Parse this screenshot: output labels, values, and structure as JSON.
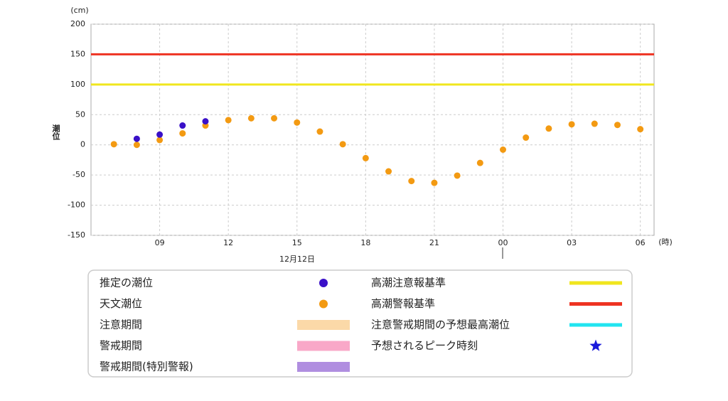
{
  "chart_data": {
    "type": "scatter",
    "y_unit": "(cm)",
    "x_unit": "(時)",
    "y_label": "潮位",
    "date_label": "12月12日",
    "xlim": [
      6,
      30.6
    ],
    "ylim": [
      -150,
      200
    ],
    "xticks": [
      {
        "value": 9,
        "label": "09"
      },
      12,
      15,
      18,
      21,
      {
        "value": 24,
        "label": "00"
      },
      {
        "value": 27,
        "label": "03"
      },
      {
        "value": 30,
        "label": "06"
      }
    ],
    "yticks": [
      200,
      150,
      100,
      50,
      0,
      -50,
      -100,
      -150
    ],
    "grid": true,
    "series": [
      {
        "name": "推定の潮位",
        "color": "#3a10c8",
        "x": [
          8,
          9,
          10,
          11
        ],
        "values": [
          10,
          17,
          32,
          39
        ]
      },
      {
        "name": "天文潮位",
        "color": "#f39a12",
        "x": [
          7,
          8,
          9,
          10,
          11,
          12,
          13,
          14,
          15,
          16,
          17,
          18,
          19,
          20,
          21,
          22,
          23,
          24,
          25,
          26,
          27,
          28,
          29,
          30
        ],
        "values": [
          1,
          0,
          8,
          19,
          32,
          41,
          44,
          44,
          37,
          22,
          1,
          -22,
          -44,
          -60,
          -63,
          -51,
          -30,
          -8,
          12,
          27,
          34,
          35,
          33,
          26
        ]
      }
    ],
    "reference_lines": [
      {
        "name": "高潮注意報基準",
        "value": 100,
        "color": "#f0e61e"
      },
      {
        "name": "高潮警報基準",
        "value": 150,
        "color": "#ee3322"
      }
    ],
    "legend_extra": [
      {
        "name": "注意期間",
        "color": "#fbd9a8",
        "shape": "swatch"
      },
      {
        "name": "警戒期間",
        "color": "#f9a8c8",
        "shape": "swatch"
      },
      {
        "name": "警戒期間(特別警報)",
        "color": "#b08ee0",
        "shape": "swatch"
      },
      {
        "name": "注意警戒期間の予想最高潮位",
        "color": "#22e5f0",
        "shape": "line"
      },
      {
        "name": "予想されるピーク時刻",
        "color": "#1a1adb",
        "shape": "star"
      }
    ]
  }
}
